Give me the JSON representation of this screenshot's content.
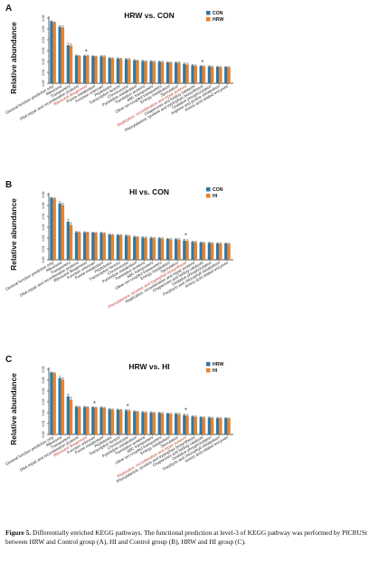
{
  "colors": {
    "series1": "#2e78a6",
    "series2": "#e8832a",
    "highlight": "#c0392b",
    "axis": "#222222"
  },
  "chart_data": [
    {
      "type": "bar",
      "panel_letter": "A",
      "title": "HRW vs. CON",
      "ylabel": "Relative abundance",
      "ylim": [
        0,
        0.06
      ],
      "yticks": [
        "0.00",
        "0.01",
        "0.02",
        "0.03",
        "0.04",
        "0.05",
        "0.06"
      ],
      "legend_position": "top-right",
      "series": [
        {
          "name": "CON",
          "color": "#2e78a6",
          "values": [
            0.057,
            0.052,
            0.035,
            0.0255,
            0.0253,
            0.025,
            0.0248,
            0.0232,
            0.0228,
            0.0222,
            0.0212,
            0.0205,
            0.0202,
            0.0198,
            0.0192,
            0.019,
            0.0178,
            0.0165,
            0.0158,
            0.0155,
            0.0151,
            0.015
          ]
        },
        {
          "name": "HRW",
          "color": "#e8832a",
          "values": [
            0.056,
            0.0515,
            0.0345,
            0.025,
            0.0252,
            0.0245,
            0.0247,
            0.0228,
            0.0225,
            0.022,
            0.0208,
            0.02,
            0.0198,
            0.0195,
            0.019,
            0.0188,
            0.0172,
            0.016,
            0.0155,
            0.0152,
            0.0148,
            0.0147
          ]
        }
      ],
      "errors": [
        0.0005,
        0.0012,
        0.0018,
        0.0006,
        0.0006,
        0.0005,
        0.0006,
        0.0006,
        0.0006,
        0.0008,
        0.0006,
        0.0007,
        0.0007,
        0.0008,
        0.0006,
        0.0009,
        0.0012,
        0.0008,
        0.0006,
        0.0006,
        0.0007,
        0.0005
      ],
      "categories": [
        "General function prediction only",
        "Ribosome",
        "Transporters",
        "DNA repair and recombination proteins",
        "Ribosome Biogenesis",
        "Purine metabolism",
        "Function unknown",
        "Peptidases",
        "Transcription factors",
        "Chromosome",
        "Pyrimidine metabolism",
        "Translation proteins",
        "ABC transporters",
        "Other ion-coupled transporters",
        "Energy metabolism",
        "Sporulation",
        "Replication, recombination and repair proteins",
        "Chaperones and folding catalysts",
        "Phenylalanine, tyrosine and tryptophan biosynthesis",
        "Oxidative phosphorylation",
        "Arginine and proline metabolism",
        "Amino acid related enzymes"
      ],
      "highlight_indices": [
        4,
        16
      ],
      "significant_indices": [
        4,
        18
      ]
    },
    {
      "type": "bar",
      "panel_letter": "B",
      "title": "HI vs. CON",
      "ylabel": "Relative abundance",
      "ylim": [
        0,
        0.06
      ],
      "yticks": [
        "0.00",
        "0.01",
        "0.02",
        "0.03",
        "0.04",
        "0.05",
        "0.06"
      ],
      "legend_position": "top-right",
      "series": [
        {
          "name": "CON",
          "color": "#2e78a6",
          "values": [
            0.057,
            0.052,
            0.035,
            0.0255,
            0.0253,
            0.025,
            0.0248,
            0.0232,
            0.0228,
            0.0222,
            0.0212,
            0.0205,
            0.0202,
            0.0198,
            0.0192,
            0.019,
            0.0178,
            0.0165,
            0.0158,
            0.0155,
            0.0151,
            0.015
          ]
        },
        {
          "name": "HI",
          "color": "#e8832a",
          "values": [
            0.0565,
            0.0505,
            0.032,
            0.0252,
            0.025,
            0.0246,
            0.0244,
            0.0228,
            0.0225,
            0.0218,
            0.0208,
            0.0202,
            0.0198,
            0.0194,
            0.0188,
            0.0186,
            0.0172,
            0.0162,
            0.0155,
            0.0152,
            0.0148,
            0.0147
          ]
        }
      ],
      "errors": [
        0.0005,
        0.0015,
        0.0022,
        0.0006,
        0.0006,
        0.0005,
        0.0006,
        0.0006,
        0.0006,
        0.0008,
        0.0006,
        0.0007,
        0.0007,
        0.0008,
        0.0006,
        0.0009,
        0.0012,
        0.0008,
        0.0006,
        0.0006,
        0.0007,
        0.0005
      ],
      "categories": [
        "General function prediction only",
        "Ribosome",
        "Transporters",
        "DNA repair and recombination proteins",
        "Ribosome Biogenesis",
        "Function unknown",
        "Purine metabolism",
        "Peptidases",
        "Transcription factors",
        "Chromosome",
        "Pyrimidine metabolism",
        "Translation proteins",
        "ABC transporters",
        "Other ion-coupled transporters",
        "Energy metabolism",
        "Sporulation",
        "Phenylalanine, tyrosine and tryptophan biosynthesis",
        "Replication, recombination and repair proteins",
        "Chaperones and folding catalysts",
        "Oxidative phosphorylation",
        "Porphyrin and chlorophyll metabolism",
        "Amino acid related enzymes"
      ],
      "highlight_indices": [
        16
      ],
      "significant_indices": [
        16
      ]
    },
    {
      "type": "bar",
      "panel_letter": "C",
      "title": "HRW vs. HI",
      "ylabel": "Relative abundance",
      "ylim": [
        0,
        0.06
      ],
      "yticks": [
        "0.00",
        "0.01",
        "0.02",
        "0.03",
        "0.04",
        "0.05",
        "0.06"
      ],
      "legend_position": "top-right",
      "series": [
        {
          "name": "HRW",
          "color": "#2e78a6",
          "values": [
            0.057,
            0.052,
            0.035,
            0.0255,
            0.0253,
            0.025,
            0.0248,
            0.0232,
            0.0228,
            0.0222,
            0.0212,
            0.0205,
            0.0202,
            0.0198,
            0.0192,
            0.019,
            0.0178,
            0.0165,
            0.0158,
            0.0155,
            0.0151,
            0.015
          ]
        },
        {
          "name": "HI",
          "color": "#e8832a",
          "values": [
            0.0565,
            0.0505,
            0.032,
            0.0252,
            0.025,
            0.0246,
            0.0244,
            0.0228,
            0.0225,
            0.0218,
            0.0208,
            0.0202,
            0.0198,
            0.0194,
            0.0188,
            0.0186,
            0.0172,
            0.0162,
            0.0155,
            0.0152,
            0.0148,
            0.0147
          ]
        }
      ],
      "errors": [
        0.0005,
        0.0015,
        0.0022,
        0.0006,
        0.0006,
        0.0005,
        0.0006,
        0.0006,
        0.0006,
        0.0008,
        0.0006,
        0.0007,
        0.0007,
        0.0008,
        0.0006,
        0.0009,
        0.0012,
        0.0008,
        0.0006,
        0.0006,
        0.0007,
        0.0005
      ],
      "categories": [
        "General function prediction only",
        "Ribosome",
        "Transporters",
        "DNA repair and recombination proteins",
        "Ribosome Biogenesis",
        "Function unknown",
        "Purine metabolism",
        "Peptidases",
        "Transcription factors",
        "Chromosome",
        "Pyrimidine metabolism",
        "Translation proteins",
        "ABC transporters",
        "Other ion-coupled transporters",
        "Energy metabolism",
        "Sporulation",
        "Replication, recombination and repair proteins",
        "Phenylalanine, tyrosine and tryptophan biosynthesis",
        "Chaperones and folding catalysts",
        "Oxidative phosphorylation",
        "Porphyrin and chlorophyll metabolism",
        "Amino acid related enzymes"
      ],
      "highlight_indices": [
        4,
        16
      ],
      "significant_indices": [
        5,
        9,
        16
      ]
    }
  ],
  "caption": {
    "label": "Figure 5.",
    "text": " Differentially enriched KEGG pathways. The functional prediction at level-3 of KEGG pathway was performed by PICRUSt between HRW and Control group (A), HI and Control group (B), HRW and HI group (C)."
  }
}
